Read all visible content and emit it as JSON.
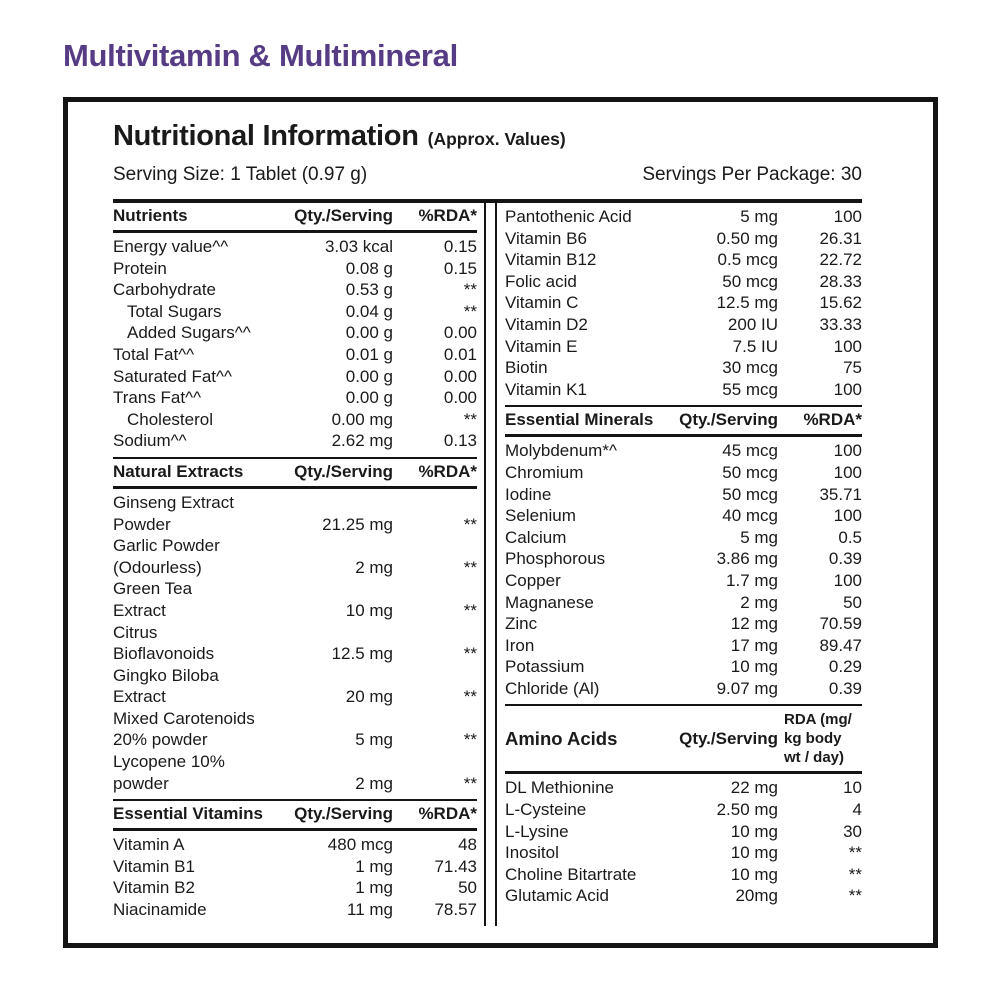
{
  "page_title": "Multivitamin & Multimineral",
  "colors": {
    "accent_purple": "#563b85",
    "text": "#1a1a1a",
    "border": "#141414"
  },
  "label": {
    "title": "Nutritional Information",
    "title_suffix": "(Approx. Values)",
    "serving_size": "Serving Size: 1 Tablet (0.97 g)",
    "servings_per_package": "Servings Per Package: 30"
  },
  "columns": {
    "left": [
      {
        "header": {
          "name": "Nutrients",
          "qty": "Qty./Serving",
          "rda": "%RDA*"
        },
        "rows": [
          {
            "name": [
              "Energy value^^"
            ],
            "qty": "3.03 kcal",
            "rda": "0.15"
          },
          {
            "name": [
              "Protein"
            ],
            "qty": "0.08 g",
            "rda": "0.15"
          },
          {
            "name": [
              "Carbohydrate"
            ],
            "qty": "0.53 g",
            "rda": "**"
          },
          {
            "name": [
              "Total Sugars"
            ],
            "indent": true,
            "qty": "0.04 g",
            "rda": "**"
          },
          {
            "name": [
              "Added Sugars^^"
            ],
            "indent": true,
            "qty": "0.00 g",
            "rda": "0.00"
          },
          {
            "name": [
              "Total Fat^^"
            ],
            "qty": "0.01 g",
            "rda": "0.01"
          },
          {
            "name": [
              "Saturated Fat^^"
            ],
            "qty": "0.00 g",
            "rda": "0.00"
          },
          {
            "name": [
              "Trans Fat^^"
            ],
            "qty": "0.00 g",
            "rda": "0.00"
          },
          {
            "name": [
              "Cholesterol"
            ],
            "indent": true,
            "qty": "0.00 mg",
            "rda": "**"
          },
          {
            "name": [
              "Sodium^^"
            ],
            "qty": "2.62 mg",
            "rda": "0.13"
          }
        ]
      },
      {
        "header": {
          "name": "Natural Extracts",
          "qty": "Qty./Serving",
          "rda": "%RDA*"
        },
        "rows": [
          {
            "name": [
              "Ginseng Extract",
              "Powder"
            ],
            "qty": "21.25 mg",
            "rda": "**"
          },
          {
            "name": [
              "Garlic Powder",
              "(Odourless)"
            ],
            "qty": "2 mg",
            "rda": "**"
          },
          {
            "name": [
              "Green Tea",
              "Extract"
            ],
            "qty": "10 mg",
            "rda": "**"
          },
          {
            "name": [
              "Citrus",
              "Bioflavonoids"
            ],
            "qty": "12.5 mg",
            "rda": "**"
          },
          {
            "name": [
              "Gingko Biloba",
              "Extract"
            ],
            "qty": "20 mg",
            "rda": "**"
          },
          {
            "name": [
              "Mixed Carotenoids",
              "20% powder"
            ],
            "qty": "5 mg",
            "rda": "**"
          },
          {
            "name": [
              "Lycopene 10%",
              "powder"
            ],
            "qty": "2 mg",
            "rda": "**"
          }
        ]
      },
      {
        "header": {
          "name": "Essential Vitamins",
          "qty": "Qty./Serving",
          "rda": "%RDA*"
        },
        "rows": [
          {
            "name": [
              "Vitamin A"
            ],
            "qty": "480 mcg",
            "rda": "48"
          },
          {
            "name": [
              "Vitamin B1"
            ],
            "qty": "1 mg",
            "rda": "71.43"
          },
          {
            "name": [
              "Vitamin B2"
            ],
            "qty": "1 mg",
            "rda": "50"
          },
          {
            "name": [
              "Niacinamide"
            ],
            "qty": "11 mg",
            "rda": "78.57"
          }
        ]
      }
    ],
    "right": [
      {
        "header": null,
        "rows": [
          {
            "name": [
              "Pantothenic Acid"
            ],
            "qty": "5 mg",
            "rda": "100"
          },
          {
            "name": [
              "Vitamin B6"
            ],
            "qty": "0.50 mg",
            "rda": "26.31"
          },
          {
            "name": [
              "Vitamin B12"
            ],
            "qty": "0.5 mcg",
            "rda": "22.72"
          },
          {
            "name": [
              "Folic acid"
            ],
            "qty": "50 mcg",
            "rda": "28.33"
          },
          {
            "name": [
              "Vitamin C"
            ],
            "qty": "12.5 mg",
            "rda": "15.62"
          },
          {
            "name": [
              "Vitamin D2"
            ],
            "qty": "200 IU",
            "rda": "33.33"
          },
          {
            "name": [
              "Vitamin E"
            ],
            "qty": "7.5 IU",
            "rda": "100"
          },
          {
            "name": [
              "Biotin"
            ],
            "qty": "30 mcg",
            "rda": "75"
          },
          {
            "name": [
              "Vitamin K1"
            ],
            "qty": "55 mcg",
            "rda": "100"
          }
        ]
      },
      {
        "header": {
          "name": "Essential Minerals",
          "qty": "Qty./Serving",
          "rda": "%RDA*"
        },
        "rows": [
          {
            "name": [
              "Molybdenum*^"
            ],
            "qty": "45 mcg",
            "rda": "100"
          },
          {
            "name": [
              "Chromium"
            ],
            "qty": "50 mcg",
            "rda": "100"
          },
          {
            "name": [
              "Iodine"
            ],
            "qty": "50 mcg",
            "rda": "35.71"
          },
          {
            "name": [
              "Selenium"
            ],
            "qty": "40 mcg",
            "rda": "100"
          },
          {
            "name": [
              "Calcium"
            ],
            "qty": "5 mg",
            "rda": "0.5"
          },
          {
            "name": [
              "Phosphorous"
            ],
            "qty": "3.86 mg",
            "rda": "0.39"
          },
          {
            "name": [
              "Copper"
            ],
            "qty": "1.7 mg",
            "rda": "100"
          },
          {
            "name": [
              "Magnanese"
            ],
            "qty": "2 mg",
            "rda": "50"
          },
          {
            "name": [
              "Zinc"
            ],
            "qty": "12 mg",
            "rda": "70.59"
          },
          {
            "name": [
              "Iron"
            ],
            "qty": "17 mg",
            "rda": "89.47"
          },
          {
            "name": [
              "Potassium"
            ],
            "qty": "10 mg",
            "rda": "0.29"
          },
          {
            "name": [
              "Chloride (Al)"
            ],
            "qty": "9.07 mg",
            "rda": "0.39"
          }
        ]
      },
      {
        "header": {
          "name": "Amino Acids",
          "qty": "Qty./Serving",
          "rda": "RDA (mg/\nkg body\nwt / day)",
          "tall": true
        },
        "rows": [
          {
            "name": [
              "DL Methionine"
            ],
            "qty": "22 mg",
            "rda": "10"
          },
          {
            "name": [
              "L-Cysteine"
            ],
            "qty": "2.50 mg",
            "rda": "4"
          },
          {
            "name": [
              "L-Lysine"
            ],
            "qty": "10 mg",
            "rda": "30"
          },
          {
            "name": [
              "Inositol"
            ],
            "qty": "10 mg",
            "rda": "**"
          },
          {
            "name": [
              "Choline Bitartrate"
            ],
            "qty": "10 mg",
            "rda": "**"
          },
          {
            "name": [
              "Glutamic Acid"
            ],
            "qty": "20mg",
            "rda": "**"
          }
        ]
      }
    ]
  }
}
